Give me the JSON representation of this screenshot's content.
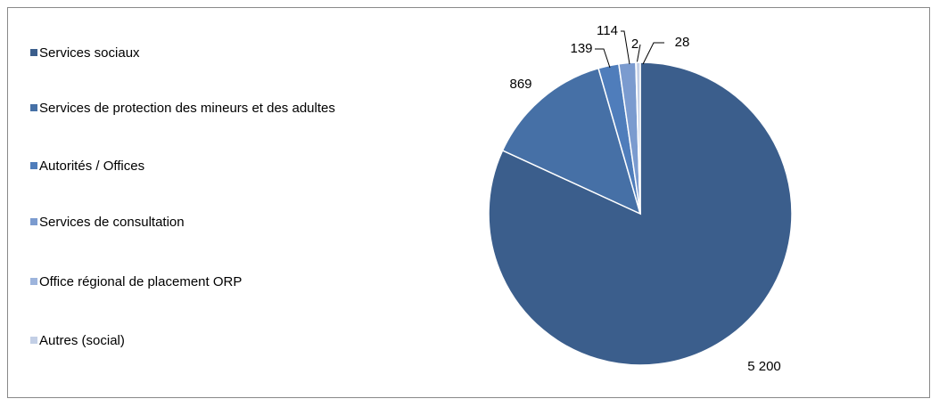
{
  "chart_data": {
    "type": "pie",
    "categories": [
      "Services sociaux",
      "Services de protection des mineurs et des adultes",
      "Autorités / Offices",
      "Services de consultation",
      "Office régional de placement ORP",
      "Autres (social)"
    ],
    "values": [
      5200,
      869,
      139,
      114,
      2,
      28
    ],
    "value_labels": [
      "5 200",
      "869",
      "139",
      "114",
      "2",
      "28"
    ],
    "colors": [
      "#3b5e8c",
      "#4670a6",
      "#4f7dbb",
      "#7b9bcf",
      "#9db4dc",
      "#c3cfe6"
    ],
    "legend": "left"
  }
}
